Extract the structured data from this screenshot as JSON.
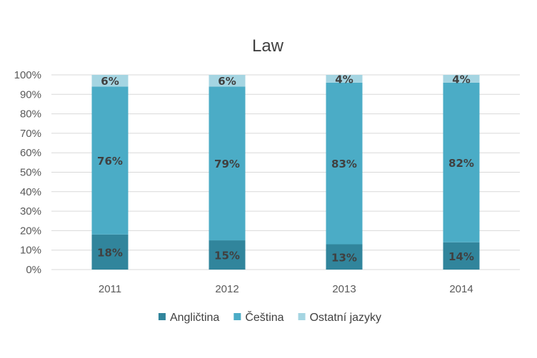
{
  "chart_data": {
    "type": "bar",
    "stacked": true,
    "normalized": true,
    "title": "Law",
    "categories": [
      "2011",
      "2012",
      "2013",
      "2014"
    ],
    "series": [
      {
        "name": "Angličtina",
        "values": [
          18,
          15,
          13,
          14
        ],
        "labels": [
          "18%",
          "15%",
          "13%",
          "14%"
        ],
        "color": "#31859c"
      },
      {
        "name": "Čeština",
        "values": [
          76,
          79,
          83,
          82
        ],
        "labels": [
          "76%",
          "79%",
          "83%",
          "82%"
        ],
        "color": "#4bacc6"
      },
      {
        "name": "Ostatní jazyky",
        "values": [
          6,
          6,
          4,
          4
        ],
        "labels": [
          "6%",
          "6%",
          "4%",
          "4%"
        ],
        "color": "#a5d5e2"
      }
    ],
    "yticks": [
      "0%",
      "10%",
      "20%",
      "30%",
      "40%",
      "50%",
      "60%",
      "70%",
      "80%",
      "90%",
      "100%"
    ],
    "ylim": [
      0,
      100
    ],
    "grid": true,
    "legend": "bottom"
  }
}
